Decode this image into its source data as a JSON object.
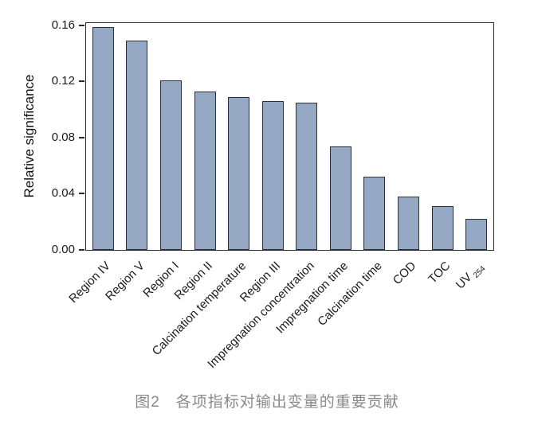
{
  "figure": {
    "caption": "图2　各项指标对输出变量的重要贡献"
  },
  "chart_data": {
    "type": "bar",
    "title": "",
    "xlabel": "",
    "ylabel": "Relative significance",
    "categories": [
      {
        "text": "Region IV"
      },
      {
        "text": "Region V"
      },
      {
        "text": "Region I"
      },
      {
        "text": "Region II"
      },
      {
        "text": "Calcination temperature"
      },
      {
        "text": "Region III"
      },
      {
        "text": "Impregnation concentration"
      },
      {
        "text": "Impregnation time"
      },
      {
        "text": "Calcination time"
      },
      {
        "text": "COD"
      },
      {
        "text": "TOC"
      },
      {
        "text": "UV",
        "sub": "254"
      }
    ],
    "values": [
      0.159,
      0.149,
      0.121,
      0.113,
      0.109,
      0.106,
      0.105,
      0.074,
      0.052,
      0.038,
      0.031,
      0.022
    ],
    "ytick_labels": [
      "0.00",
      "0.04",
      "0.08",
      "0.12",
      "0.16"
    ],
    "ylim": [
      0,
      0.1617
    ],
    "grid": false,
    "legend": false,
    "x_label_rotation": -45,
    "colors": {
      "bar_fill": "#95a8c3",
      "bar_border": "#27313f",
      "axis": "#2b2b2b",
      "tick_text": "#1a1a1a",
      "caption_text": "#8a8a8a"
    }
  }
}
